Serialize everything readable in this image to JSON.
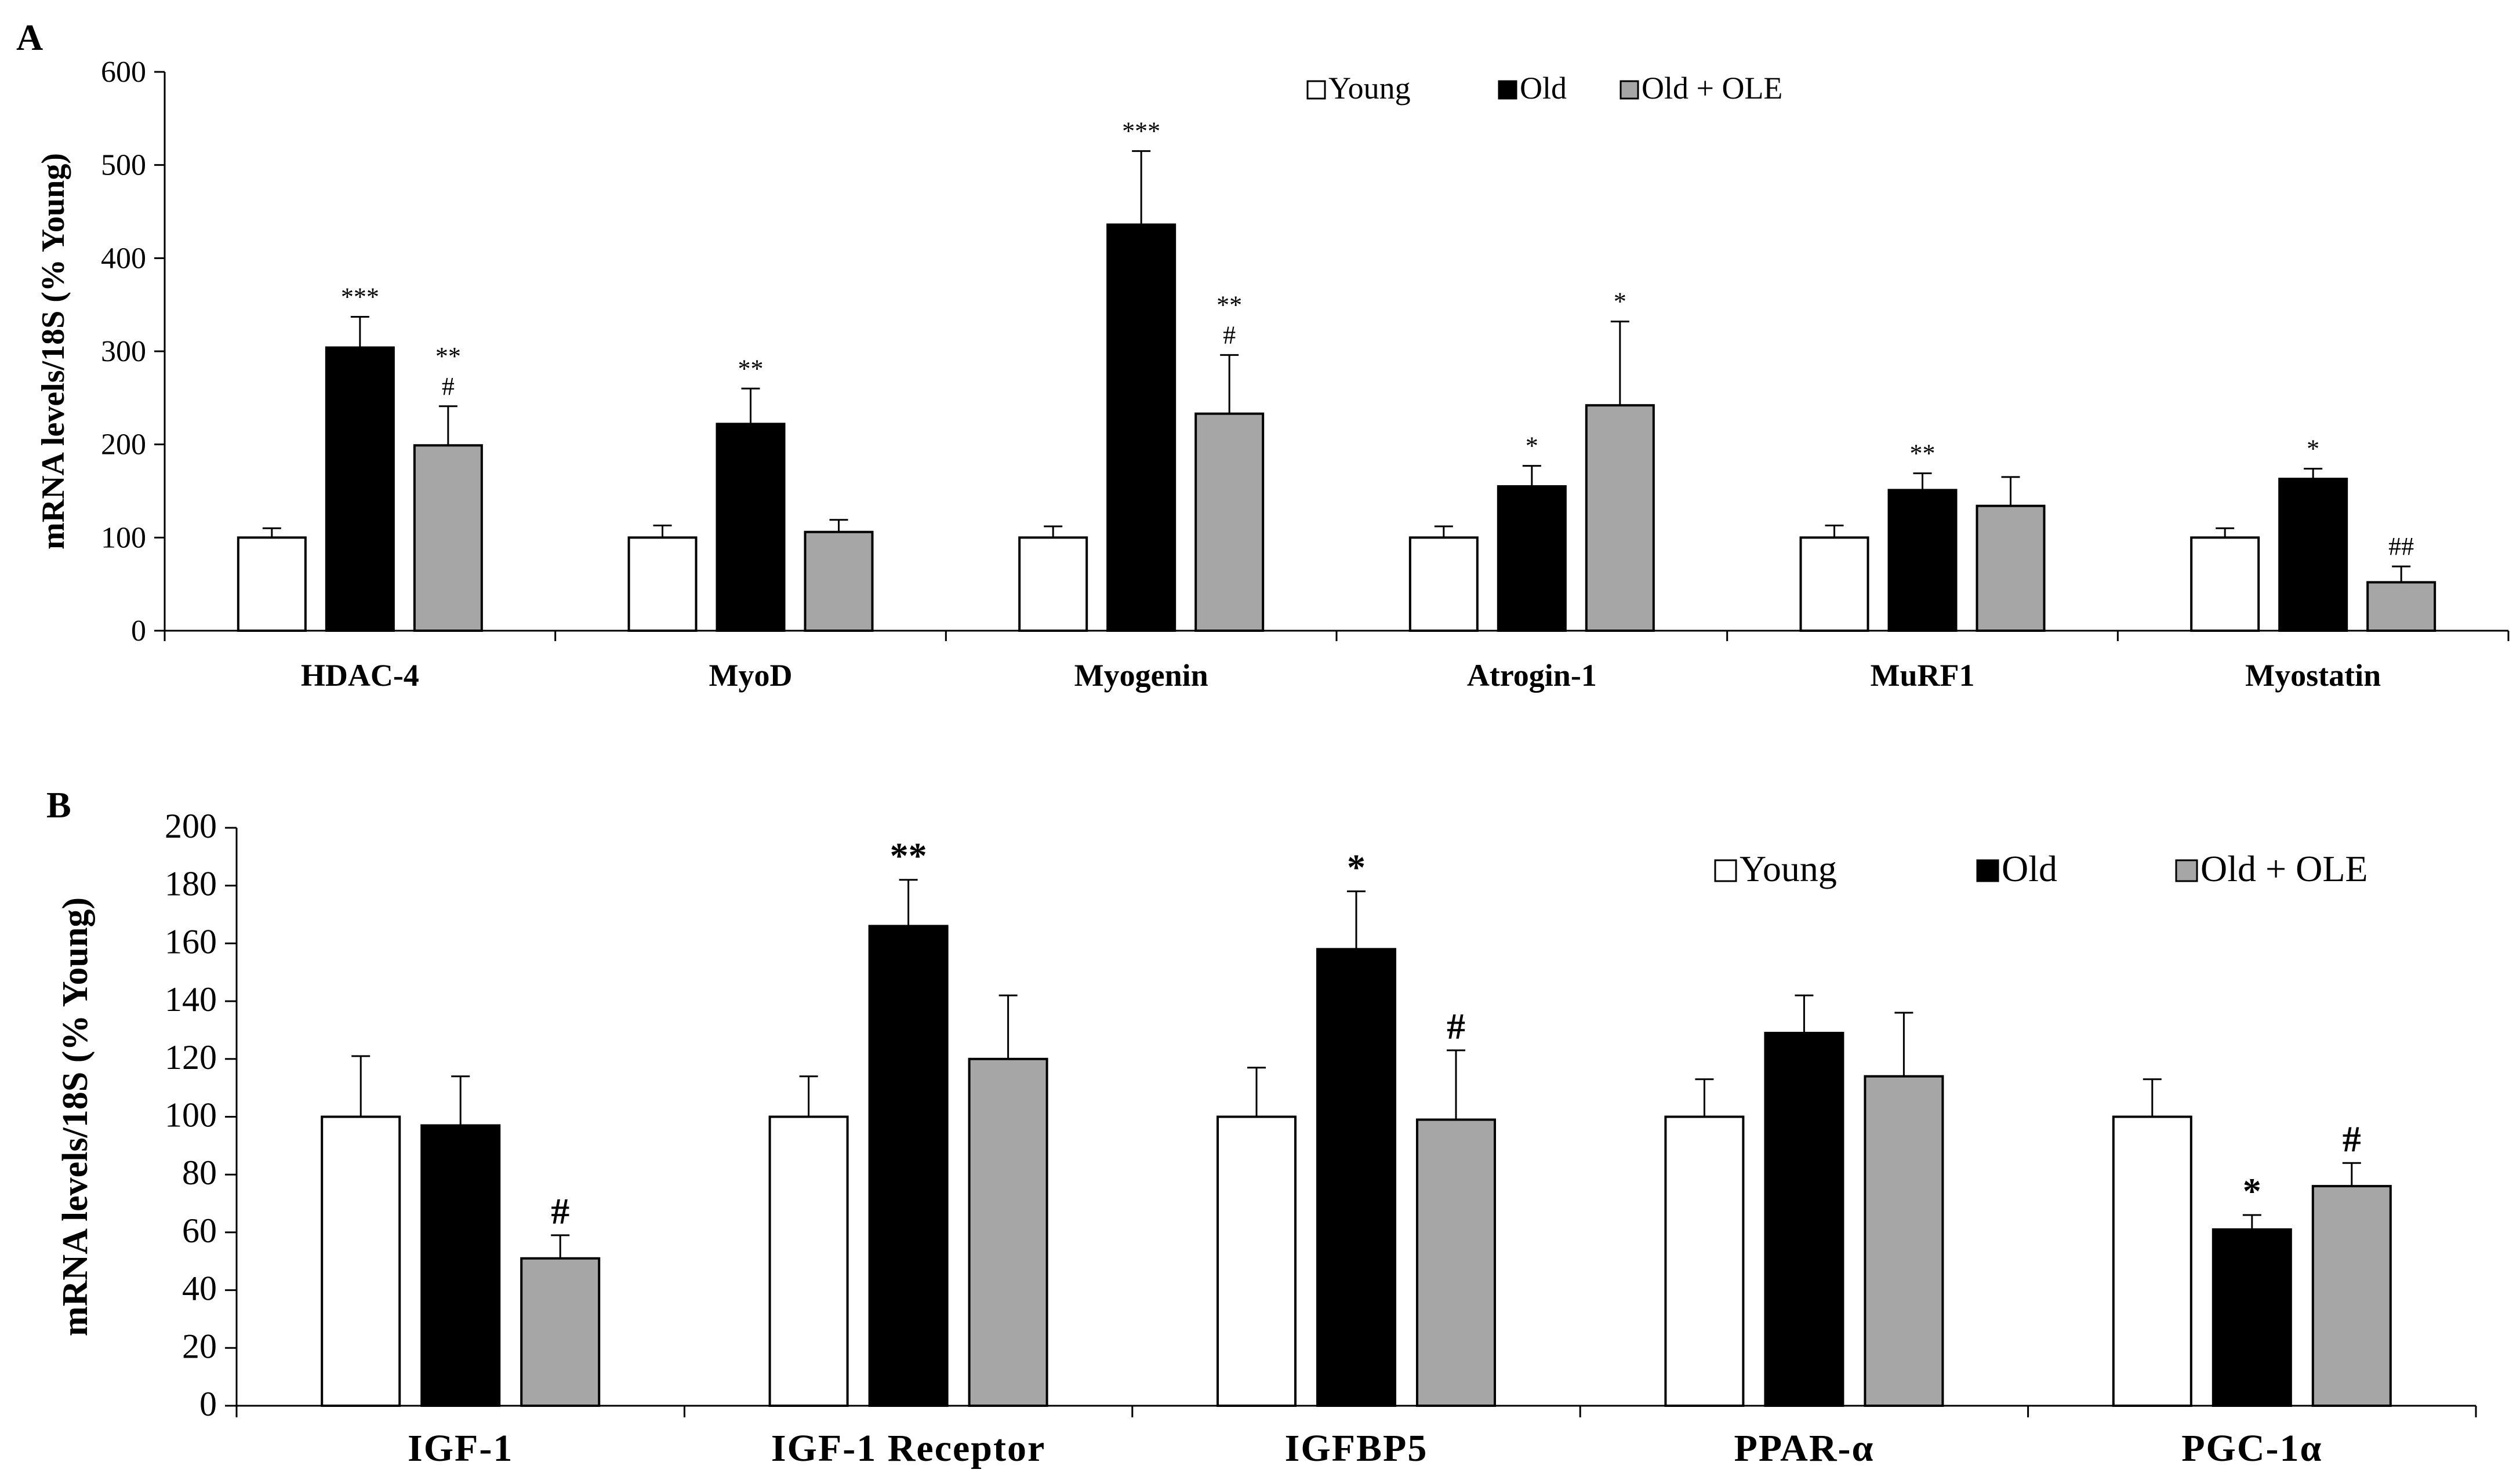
{
  "colors": {
    "young": "#ffffff",
    "old": "#000000",
    "old_ole": "#a6a6a6",
    "stroke": "#000000"
  },
  "chart_data": [
    {
      "type": "bar",
      "panel": "A",
      "ylabel": "mRNA levels/18S (% Young)",
      "xlabel": "",
      "ylim": [
        0,
        600
      ],
      "yticks": [
        0,
        100,
        200,
        300,
        400,
        500,
        600
      ],
      "legend": [
        "Young",
        "Old",
        "Old + OLE"
      ],
      "legend_position": "top-center",
      "categories": [
        "HDAC-4",
        "MyoD",
        "Myogenin",
        "Atrogin-1",
        "MuRF1",
        "Myostatin"
      ],
      "series": [
        {
          "name": "Young",
          "values": [
            100,
            100,
            100,
            100,
            100,
            100
          ],
          "errors": [
            10,
            13,
            12,
            12,
            13,
            10
          ],
          "annotations": [
            "",
            "",
            "",
            "",
            "",
            ""
          ]
        },
        {
          "name": "Old",
          "values": [
            304,
            222,
            436,
            155,
            151,
            163
          ],
          "errors": [
            33,
            38,
            79,
            22,
            18,
            11
          ],
          "annotations": [
            "***",
            "**",
            "***",
            "*",
            "**",
            "*"
          ]
        },
        {
          "name": "Old + OLE",
          "values": [
            199,
            106,
            233,
            242,
            134,
            52
          ],
          "errors": [
            42,
            13,
            63,
            90,
            31,
            17
          ],
          "annotations": [
            "**|#",
            "",
            "**|#",
            "*",
            "",
            "##"
          ]
        }
      ]
    },
    {
      "type": "bar",
      "panel": "B",
      "ylabel": "mRNA levels/18S (% Young)",
      "xlabel": "",
      "ylim": [
        0,
        200
      ],
      "yticks": [
        0,
        20,
        40,
        60,
        80,
        100,
        120,
        140,
        160,
        180,
        200
      ],
      "legend": [
        "Young",
        "Old",
        "Old + OLE"
      ],
      "legend_position": "top-right",
      "categories": [
        "IGF-1",
        "IGF-1 Receptor",
        "IGFBP5",
        "PPAR-α",
        "PGC-1α"
      ],
      "series": [
        {
          "name": "Young",
          "values": [
            100,
            100,
            100,
            100,
            100
          ],
          "errors": [
            21,
            14,
            17,
            13,
            13
          ],
          "annotations": [
            "",
            "",
            "",
            "",
            ""
          ]
        },
        {
          "name": "Old",
          "values": [
            97,
            166,
            158,
            129,
            61
          ],
          "errors": [
            17,
            16,
            20,
            13,
            5
          ],
          "annotations": [
            "",
            "**",
            "*",
            "",
            "*"
          ]
        },
        {
          "name": "Old + OLE",
          "values": [
            51,
            120,
            99,
            114,
            76
          ],
          "errors": [
            8,
            22,
            24,
            22,
            8
          ],
          "annotations": [
            "#",
            "",
            "#",
            "",
            "#"
          ]
        }
      ]
    }
  ]
}
